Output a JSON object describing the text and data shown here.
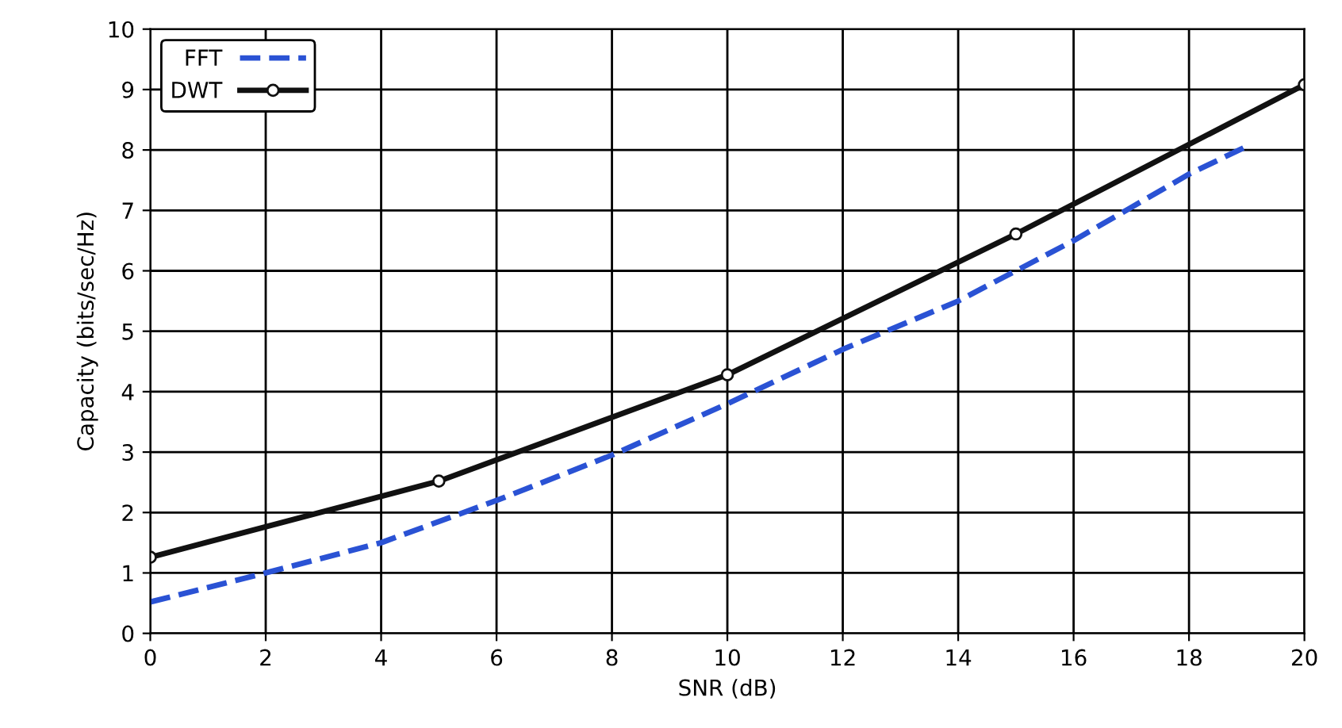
{
  "chart_data": {
    "type": "line",
    "xlabel": "SNR (dB)",
    "ylabel": "Capacity (bits/sec/Hz)",
    "xlim": [
      0,
      20
    ],
    "ylim": [
      0,
      10
    ],
    "xticks": [
      0,
      2,
      4,
      6,
      8,
      10,
      12,
      14,
      16,
      18,
      20
    ],
    "yticks": [
      0,
      1,
      2,
      3,
      4,
      5,
      6,
      7,
      8,
      9,
      10
    ],
    "grid": true,
    "legend": "top left",
    "series": [
      {
        "name": "FFT",
        "color": "#2a52d4",
        "line_style": "dashed",
        "marker": "none",
        "x": [
          0,
          2,
          4,
          6,
          8,
          10,
          12,
          14,
          16,
          18,
          19
        ],
        "values": [
          0.52,
          1.0,
          1.5,
          2.2,
          2.95,
          3.8,
          4.7,
          5.5,
          6.5,
          7.6,
          8.06
        ]
      },
      {
        "name": "DWT",
        "color": "#111111",
        "line_style": "solid",
        "marker": "circle",
        "x": [
          0,
          5,
          10,
          15,
          20
        ],
        "values": [
          1.26,
          2.52,
          4.28,
          6.61,
          9.08
        ]
      }
    ]
  }
}
